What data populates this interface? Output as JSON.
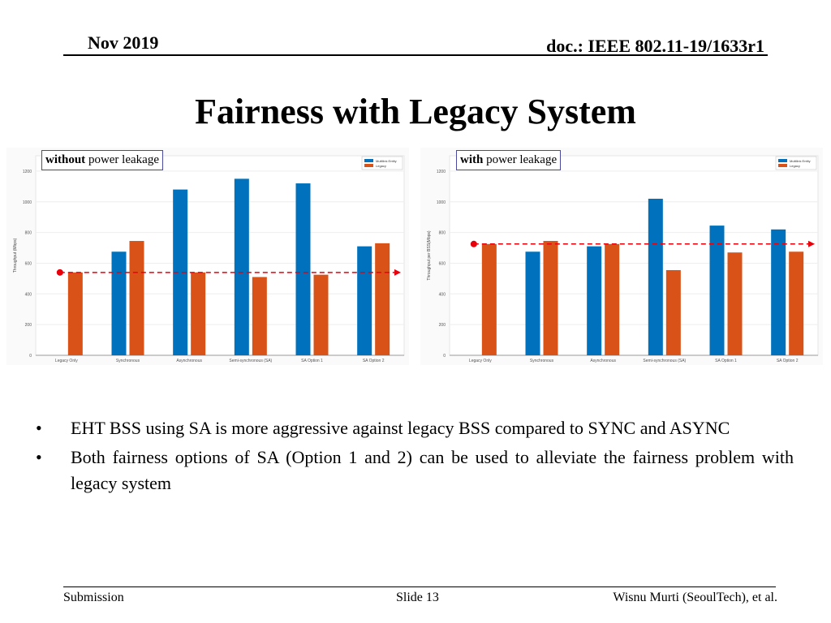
{
  "header": {
    "date": "Nov 2019",
    "doc": "doc.: IEEE 802.11-19/1633r1"
  },
  "title": "Fairness with Legacy System",
  "colors": {
    "multilink": "#0072bd",
    "legacy": "#d95319",
    "reference": "#e8000b"
  },
  "chart_data": [
    {
      "type": "bar",
      "tag_bold": "without",
      "tag_rest": " power leakage",
      "ylabel": "Throughput (Mbps)",
      "ylim": [
        0,
        1300
      ],
      "yticks": [
        0,
        200,
        400,
        600,
        800,
        1000,
        1200
      ],
      "categories": [
        "Legacy Only",
        "Synchronous",
        "Asynchronous",
        "Semi-synchronous (SA)",
        "SA Option 1",
        "SA Option 2"
      ],
      "series": [
        {
          "name": "Multilink Entity",
          "values": [
            null,
            675,
            1080,
            1150,
            1120,
            710
          ]
        },
        {
          "name": "Legacy",
          "values": [
            540,
            745,
            540,
            510,
            525,
            730
          ]
        }
      ],
      "reference_line": 540
    },
    {
      "type": "bar",
      "tag_bold": "with",
      "tag_rest": " power leakage",
      "ylabel": "Throughput per BSS(Mbps)",
      "ylim": [
        0,
        1300
      ],
      "yticks": [
        0,
        200,
        400,
        600,
        800,
        1000,
        1200
      ],
      "categories": [
        "Legacy Only",
        "Synchronous",
        "Asynchronous",
        "Semi-synchronous (SA)",
        "SA Option 1",
        "SA Option 2"
      ],
      "series": [
        {
          "name": "Multilink Entity",
          "values": [
            null,
            675,
            710,
            1020,
            845,
            820
          ]
        },
        {
          "name": "Legacy",
          "values": [
            725,
            745,
            725,
            555,
            670,
            675
          ]
        }
      ],
      "reference_line": 725
    }
  ],
  "bullets": [
    "EHT BSS using SA is more aggressive against legacy BSS compared to SYNC and ASYNC",
    "Both fairness options of SA (Option 1 and 2) can be used to alleviate the fairness problem with legacy system"
  ],
  "bullet_symbol": "•",
  "footer": {
    "left": "Submission",
    "center": "Slide 13",
    "right": "Wisnu Murti (SeoulTech), et al."
  }
}
